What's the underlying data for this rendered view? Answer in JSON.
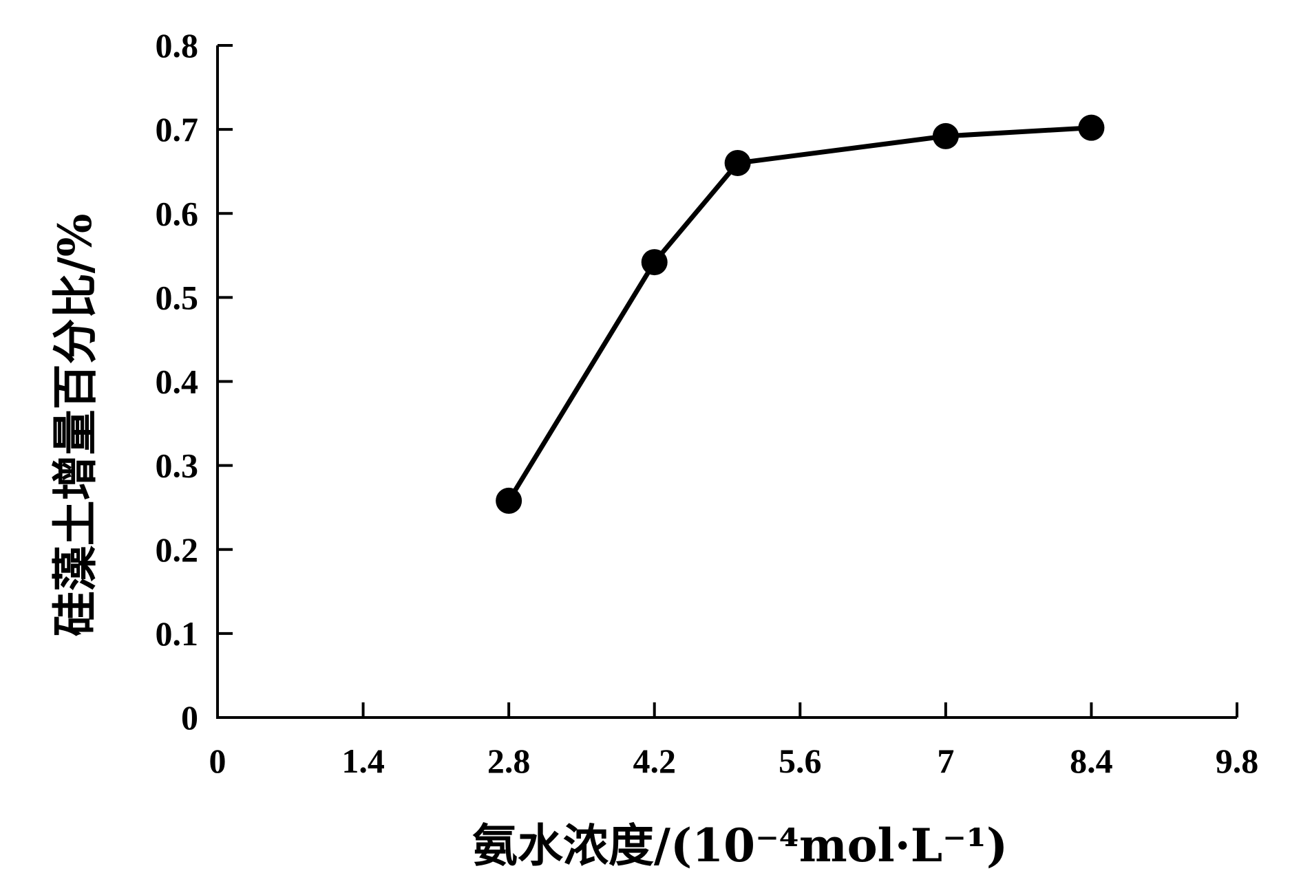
{
  "chart_data": {
    "type": "line",
    "title": "",
    "xlabel": "氨水浓度/(10⁻⁴mol·L⁻¹)",
    "ylabel": "硅藻土增量百分比/%",
    "xlim": [
      0,
      9.8
    ],
    "ylim": [
      0,
      0.8
    ],
    "x_ticks": [
      0,
      1.4,
      2.8,
      4.2,
      5.6,
      7,
      8.4,
      9.8
    ],
    "x_tick_labels": [
      "0",
      "1.4",
      "2.8",
      "4.2",
      "5.6",
      "7",
      "8.4",
      "9.8"
    ],
    "y_ticks": [
      0,
      0.1,
      0.2,
      0.3,
      0.4,
      0.5,
      0.6,
      0.7,
      0.8
    ],
    "y_tick_labels": [
      "0",
      "0.1",
      "0.2",
      "0.3",
      "0.4",
      "0.5",
      "0.6",
      "0.7",
      "0.8"
    ],
    "grid": false,
    "series": [
      {
        "x": [
          2.8,
          4.2,
          5.0,
          7.0,
          8.4
        ],
        "y": [
          0.258,
          0.542,
          0.66,
          0.692,
          0.702
        ],
        "color": "#000000",
        "marker": "circle"
      }
    ]
  }
}
